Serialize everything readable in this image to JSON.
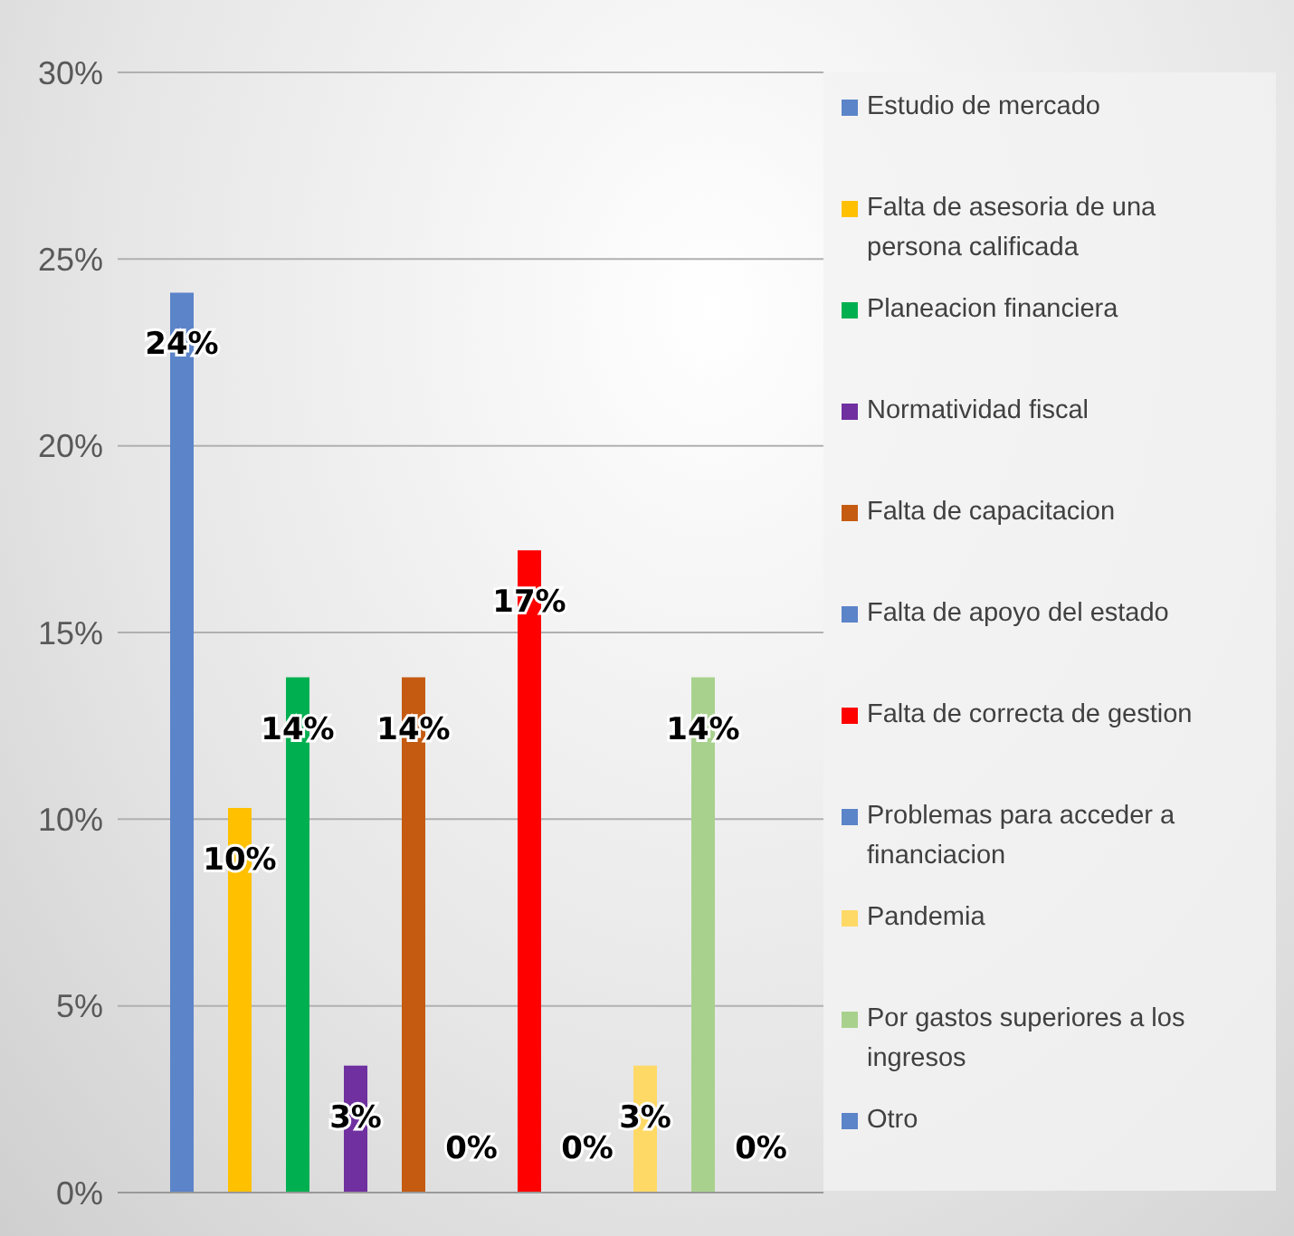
{
  "chart_data": {
    "type": "bar",
    "categories": [
      null
    ],
    "series": [
      {
        "name": "Estudio de mercado",
        "color": "#5b84c9",
        "values": [
          24.1
        ]
      },
      {
        "name": "Falta de asesoria de una persona calificada",
        "color": "#ffc000",
        "values": [
          10.3
        ]
      },
      {
        "name": "Planeacion financiera",
        "color": "#00b050",
        "values": [
          13.8
        ]
      },
      {
        "name": "Normatividad fiscal",
        "color": "#7030a0",
        "values": [
          3.4
        ]
      },
      {
        "name": "Falta de capacitacion",
        "color": "#c55a11",
        "values": [
          13.8
        ]
      },
      {
        "name": "Falta de apoyo del estado",
        "color": "#5b84c9",
        "values": [
          0
        ]
      },
      {
        "name": "Falta de correcta de gestion",
        "color": "#ff0000",
        "values": [
          17.2
        ]
      },
      {
        "name": "Problemas para acceder a financiacion",
        "color": "#5b84c9",
        "values": [
          0
        ]
      },
      {
        "name": "Pandemia",
        "color": "#ffd966",
        "values": [
          3.4
        ]
      },
      {
        "name": "Por gastos superiores a los ingresos",
        "color": "#a9d18e",
        "values": [
          13.8
        ]
      },
      {
        "name": "Otro",
        "color": "#5b84c9",
        "values": [
          0
        ]
      }
    ],
    "value_labels": [
      "24%",
      "10%",
      "14%",
      "3%",
      "14%",
      "0%",
      "17%",
      "0%",
      "3%",
      "14%",
      "0%"
    ],
    "ylim": [
      0,
      30
    ],
    "yticks": [
      {
        "value": 0,
        "label": "0%"
      },
      {
        "value": 5,
        "label": "5%"
      },
      {
        "value": 10,
        "label": "10%"
      },
      {
        "value": 15,
        "label": "15%"
      },
      {
        "value": 20,
        "label": "20%"
      },
      {
        "value": 25,
        "label": "25%"
      },
      {
        "value": 30,
        "label": "30%"
      }
    ],
    "grid": "y",
    "legend": "right"
  }
}
